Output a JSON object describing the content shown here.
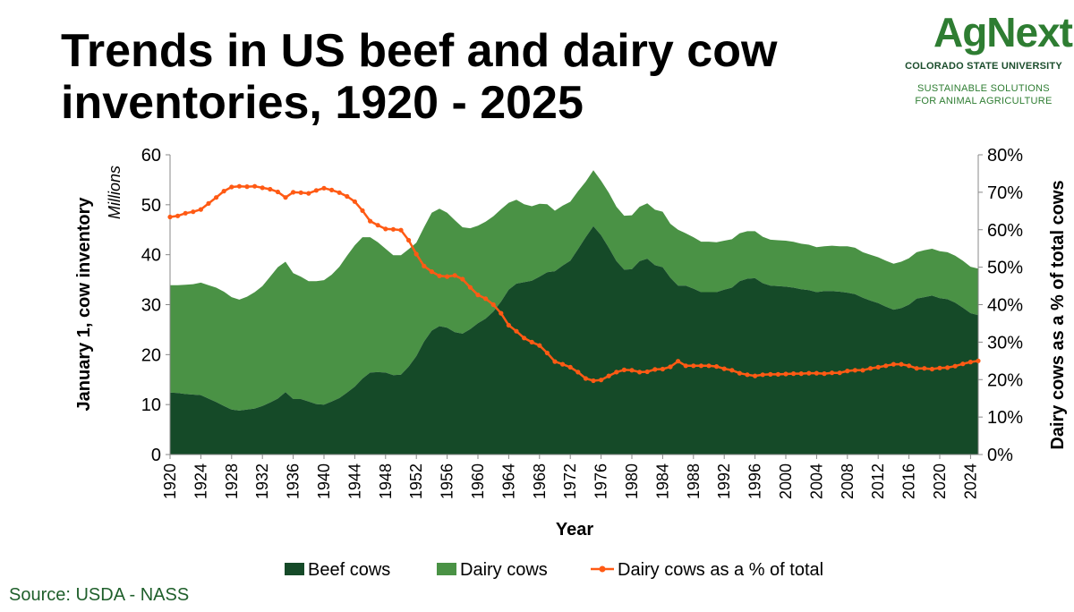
{
  "header": {
    "title": "Trends in US beef and dairy cow inventories, 1920 - 2025"
  },
  "logo": {
    "wordmark": "AgNext",
    "university": "COLORADO STATE UNIVERSITY",
    "tagline_1": "SUSTAINABLE SOLUTIONS",
    "tagline_2": "FOR ANIMAL AGRICULTURE",
    "color": "#2e7d32"
  },
  "source": "Source: USDA - NASS",
  "colors": {
    "beef": "#154a28",
    "dairy": "#4a9245",
    "pct": "#ff5a14"
  },
  "chart_data": {
    "type": "area",
    "title": "Trends in US beef and dairy cow inventories, 1920 - 2025",
    "xlabel": "Year",
    "ylabel": "January 1, cow inventory",
    "ylabel_units": "Millions",
    "y2label": "Dairy cows as a % of total cows",
    "ylim": [
      0,
      60
    ],
    "y2lim": [
      0,
      0.8
    ],
    "yticks": [
      "0",
      "10",
      "20",
      "30",
      "40",
      "50",
      "60"
    ],
    "y2ticks": [
      "0%",
      "10%",
      "20%",
      "30%",
      "40%",
      "50%",
      "60%",
      "70%",
      "80%"
    ],
    "xticks": [
      "1920",
      "1924",
      "1928",
      "1932",
      "1936",
      "1940",
      "1944",
      "1948",
      "1952",
      "1956",
      "1960",
      "1964",
      "1968",
      "1972",
      "1976",
      "1980",
      "1984",
      "1988",
      "1992",
      "1996",
      "2000",
      "2004",
      "2008",
      "2012",
      "2016",
      "2020",
      "2024"
    ],
    "grid": false,
    "legend_position": "bottom",
    "x": [
      1920,
      1921,
      1922,
      1923,
      1924,
      1925,
      1926,
      1927,
      1928,
      1929,
      1930,
      1931,
      1932,
      1933,
      1934,
      1935,
      1936,
      1937,
      1938,
      1939,
      1940,
      1941,
      1942,
      1943,
      1944,
      1945,
      1946,
      1947,
      1948,
      1949,
      1950,
      1951,
      1952,
      1953,
      1954,
      1955,
      1956,
      1957,
      1958,
      1959,
      1960,
      1961,
      1962,
      1963,
      1964,
      1965,
      1966,
      1967,
      1968,
      1969,
      1970,
      1971,
      1972,
      1973,
      1974,
      1975,
      1976,
      1977,
      1978,
      1979,
      1980,
      1981,
      1982,
      1983,
      1984,
      1985,
      1986,
      1987,
      1988,
      1989,
      1990,
      1991,
      1992,
      1993,
      1994,
      1995,
      1996,
      1997,
      1998,
      1999,
      2000,
      2001,
      2002,
      2003,
      2004,
      2005,
      2006,
      2007,
      2008,
      2009,
      2010,
      2011,
      2012,
      2013,
      2014,
      2015,
      2016,
      2017,
      2018,
      2019,
      2020,
      2021,
      2022,
      2023,
      2024,
      2025
    ],
    "series": [
      {
        "name": "Beef cows",
        "kind": "stacked-area",
        "axis": "left",
        "values": [
          12.4,
          12.3,
          12.1,
          12.0,
          11.9,
          11.2,
          10.5,
          9.7,
          9.0,
          8.8,
          9.0,
          9.2,
          9.7,
          10.4,
          11.2,
          12.5,
          11.1,
          11.1,
          10.6,
          10.1,
          10.0,
          10.6,
          11.3,
          12.4,
          13.6,
          15.2,
          16.4,
          16.5,
          16.4,
          15.9,
          16.0,
          17.6,
          19.7,
          22.6,
          24.8,
          25.7,
          25.4,
          24.5,
          24.2,
          25.1,
          26.3,
          27.2,
          28.6,
          30.6,
          33.0,
          34.2,
          34.5,
          34.8,
          35.6,
          36.5,
          36.7,
          37.8,
          38.8,
          41.1,
          43.5,
          45.7,
          43.9,
          41.4,
          38.7,
          37.0,
          37.1,
          38.7,
          39.2,
          37.9,
          37.5,
          35.4,
          33.8,
          33.8,
          33.2,
          32.5,
          32.5,
          32.5,
          33.0,
          33.4,
          34.7,
          35.2,
          35.3,
          34.3,
          33.8,
          33.7,
          33.6,
          33.4,
          33.1,
          32.9,
          32.5,
          32.7,
          32.7,
          32.6,
          32.4,
          32.1,
          31.4,
          30.8,
          30.3,
          29.6,
          29.0,
          29.3,
          30.0,
          31.2,
          31.5,
          31.8,
          31.3,
          31.1,
          30.4,
          29.4,
          28.3,
          27.9
        ]
      },
      {
        "name": "Dairy cows",
        "kind": "stacked-area",
        "axis": "left",
        "values": [
          21.5,
          21.6,
          21.9,
          22.1,
          22.5,
          22.7,
          22.9,
          22.9,
          22.5,
          22.2,
          22.6,
          23.3,
          24.0,
          25.2,
          26.3,
          26.1,
          25.2,
          24.5,
          24.1,
          24.6,
          24.9,
          25.4,
          26.3,
          27.4,
          28.3,
          28.3,
          27.1,
          26.0,
          24.8,
          24.0,
          23.9,
          23.5,
          22.7,
          22.9,
          23.6,
          23.5,
          23.0,
          22.4,
          21.3,
          20.2,
          19.5,
          19.4,
          19.1,
          18.5,
          17.4,
          16.8,
          15.6,
          14.9,
          14.6,
          13.6,
          12.1,
          12.0,
          11.8,
          11.6,
          11.1,
          11.2,
          10.9,
          11.0,
          10.9,
          10.8,
          10.8,
          10.9,
          11.1,
          11.1,
          11.1,
          10.8,
          11.2,
          10.5,
          10.3,
          10.1,
          10.1,
          10.0,
          9.8,
          9.7,
          9.6,
          9.5,
          9.4,
          9.3,
          9.2,
          9.2,
          9.2,
          9.2,
          9.1,
          9.1,
          9.0,
          9.0,
          9.1,
          9.1,
          9.3,
          9.3,
          9.1,
          9.2,
          9.2,
          9.2,
          9.2,
          9.3,
          9.3,
          9.3,
          9.4,
          9.4,
          9.4,
          9.4,
          9.4,
          9.4,
          9.3,
          9.3
        ]
      },
      {
        "name": "Dairy cows as a % of total",
        "kind": "line",
        "axis": "right",
        "values": [
          0.634,
          0.637,
          0.644,
          0.648,
          0.654,
          0.67,
          0.686,
          0.703,
          0.714,
          0.716,
          0.715,
          0.716,
          0.712,
          0.708,
          0.701,
          0.686,
          0.7,
          0.699,
          0.697,
          0.705,
          0.711,
          0.706,
          0.699,
          0.689,
          0.675,
          0.651,
          0.623,
          0.612,
          0.602,
          0.601,
          0.599,
          0.572,
          0.535,
          0.503,
          0.488,
          0.477,
          0.475,
          0.478,
          0.468,
          0.446,
          0.426,
          0.416,
          0.4,
          0.377,
          0.345,
          0.329,
          0.311,
          0.3,
          0.291,
          0.271,
          0.248,
          0.241,
          0.233,
          0.22,
          0.203,
          0.197,
          0.199,
          0.21,
          0.22,
          0.226,
          0.225,
          0.22,
          0.221,
          0.227,
          0.228,
          0.234,
          0.249,
          0.237,
          0.237,
          0.237,
          0.237,
          0.235,
          0.229,
          0.225,
          0.217,
          0.213,
          0.21,
          0.213,
          0.214,
          0.214,
          0.215,
          0.216,
          0.216,
          0.217,
          0.217,
          0.216,
          0.218,
          0.218,
          0.223,
          0.225,
          0.225,
          0.23,
          0.233,
          0.237,
          0.241,
          0.241,
          0.237,
          0.23,
          0.23,
          0.228,
          0.231,
          0.232,
          0.236,
          0.242,
          0.247,
          0.25
        ]
      }
    ]
  }
}
